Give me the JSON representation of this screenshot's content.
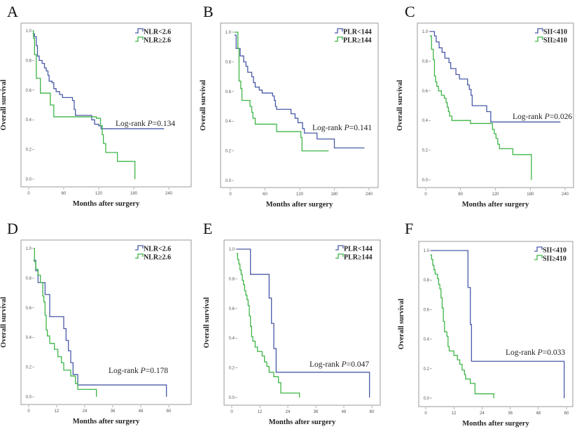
{
  "chart_data": [
    {
      "panel": "A",
      "type": "line",
      "step": true,
      "xlabel": "Months after surgery",
      "ylabel": "Overall survival",
      "xlim": [
        0,
        240
      ],
      "ylim": [
        0,
        1
      ],
      "xticks": [
        "0",
        "60",
        "120",
        "180",
        "240"
      ],
      "yticks": [
        "0.0",
        "0.2",
        "0.4",
        "0.6",
        "0.8",
        "1.0"
      ],
      "logrank": {
        "label": "Log-rank",
        "p_symbol": "P",
        "p_value": "=0.134"
      },
      "series": [
        {
          "name": "NLR<2.6",
          "color": "#4a5aa8",
          "points": [
            [
              7,
              0.98
            ],
            [
              10,
              0.96
            ],
            [
              13,
              0.9
            ],
            [
              15,
              0.83
            ],
            [
              18,
              0.8
            ],
            [
              23,
              0.78
            ],
            [
              27,
              0.75
            ],
            [
              30,
              0.73
            ],
            [
              33,
              0.7
            ],
            [
              35,
              0.66
            ],
            [
              40,
              0.65
            ],
            [
              43,
              0.61
            ],
            [
              47,
              0.59
            ],
            [
              53,
              0.57
            ],
            [
              58,
              0.55
            ],
            [
              75,
              0.53
            ],
            [
              78,
              0.47
            ],
            [
              80,
              0.43
            ],
            [
              108,
              0.4
            ],
            [
              113,
              0.37
            ],
            [
              120,
              0.36
            ],
            [
              124,
              0.34
            ],
            [
              232,
              0.34
            ]
          ]
        },
        {
          "name": "NLR≥2.6",
          "color": "#3fb548",
          "points": [
            [
              7,
              1.0
            ],
            [
              8,
              0.95
            ],
            [
              10,
              0.84
            ],
            [
              13,
              0.68
            ],
            [
              20,
              0.58
            ],
            [
              37,
              0.5
            ],
            [
              43,
              0.42
            ],
            [
              116,
              0.41
            ],
            [
              123,
              0.36
            ],
            [
              126,
              0.3
            ],
            [
              128,
              0.24
            ],
            [
              132,
              0.18
            ],
            [
              152,
              0.12
            ],
            [
              182,
              0.12
            ],
            [
              182,
              0
            ]
          ]
        }
      ]
    },
    {
      "panel": "B",
      "type": "line",
      "step": true,
      "xlabel": "Months after surgery",
      "ylabel": "Overall survival",
      "xlim": [
        0,
        240
      ],
      "ylim": [
        0,
        1
      ],
      "xticks": [
        "0",
        "60",
        "120",
        "180",
        "240"
      ],
      "yticks": [
        "0.0",
        "0.2",
        "0.4",
        "0.6",
        "0.8",
        "1.0"
      ],
      "logrank": {
        "label": "Log-rank",
        "p_symbol": "P",
        "p_value": "=0.141"
      },
      "series": [
        {
          "name": "PLR<144",
          "color": "#4a5aa8",
          "points": [
            [
              7,
              0.98
            ],
            [
              10,
              0.89
            ],
            [
              17,
              0.84
            ],
            [
              23,
              0.8
            ],
            [
              27,
              0.77
            ],
            [
              30,
              0.73
            ],
            [
              37,
              0.7
            ],
            [
              40,
              0.66
            ],
            [
              43,
              0.63
            ],
            [
              50,
              0.61
            ],
            [
              55,
              0.59
            ],
            [
              73,
              0.57
            ],
            [
              76,
              0.54
            ],
            [
              78,
              0.5
            ],
            [
              80,
              0.48
            ],
            [
              105,
              0.45
            ],
            [
              112,
              0.42
            ],
            [
              117,
              0.39
            ],
            [
              125,
              0.35
            ],
            [
              128,
              0.32
            ],
            [
              150,
              0.28
            ],
            [
              180,
              0.22
            ],
            [
              232,
              0.22
            ]
          ]
        },
        {
          "name": "PLR≥144",
          "color": "#3fb548",
          "points": [
            [
              7,
              1.0
            ],
            [
              13,
              0.89
            ],
            [
              15,
              0.67
            ],
            [
              18,
              0.62
            ],
            [
              20,
              0.54
            ],
            [
              34,
              0.5
            ],
            [
              37,
              0.46
            ],
            [
              39,
              0.42
            ],
            [
              43,
              0.38
            ],
            [
              80,
              0.33
            ],
            [
              122,
              0.29
            ],
            [
              124,
              0.2
            ],
            [
              170,
              0.2
            ]
          ]
        }
      ]
    },
    {
      "panel": "C",
      "type": "line",
      "step": true,
      "xlabel": "Months after surgery",
      "ylabel": "Overall survival",
      "xlim": [
        0,
        240
      ],
      "ylim": [
        0,
        1
      ],
      "xticks": [
        "0",
        "60",
        "120",
        "180",
        "240"
      ],
      "yticks": [
        "0.0",
        "0.2",
        "0.4",
        "0.6",
        "0.8",
        "1.0"
      ],
      "logrank": {
        "label": "Log-rank",
        "p_symbol": "P",
        "p_value": "=0.026"
      },
      "series": [
        {
          "name": "SII<410",
          "color": "#4a5aa8",
          "points": [
            [
              7,
              1.0
            ],
            [
              15,
              0.97
            ],
            [
              18,
              0.93
            ],
            [
              23,
              0.89
            ],
            [
              28,
              0.86
            ],
            [
              33,
              0.82
            ],
            [
              40,
              0.79
            ],
            [
              43,
              0.75
            ],
            [
              52,
              0.71
            ],
            [
              58,
              0.68
            ],
            [
              72,
              0.64
            ],
            [
              75,
              0.61
            ],
            [
              78,
              0.57
            ],
            [
              80,
              0.5
            ],
            [
              105,
              0.46
            ],
            [
              112,
              0.39
            ],
            [
              232,
              0.39
            ]
          ]
        },
        {
          "name": "SII≥410",
          "color": "#3fb548",
          "points": [
            [
              7,
              0.97
            ],
            [
              10,
              0.88
            ],
            [
              13,
              0.81
            ],
            [
              15,
              0.7
            ],
            [
              17,
              0.66
            ],
            [
              19,
              0.63
            ],
            [
              22,
              0.6
            ],
            [
              27,
              0.57
            ],
            [
              32,
              0.55
            ],
            [
              35,
              0.52
            ],
            [
              37,
              0.49
            ],
            [
              39,
              0.46
            ],
            [
              41,
              0.43
            ],
            [
              45,
              0.4
            ],
            [
              77,
              0.38
            ],
            [
              115,
              0.34
            ],
            [
              118,
              0.31
            ],
            [
              121,
              0.28
            ],
            [
              124,
              0.24
            ],
            [
              127,
              0.21
            ],
            [
              150,
              0.17
            ],
            [
              182,
              0.17
            ],
            [
              182,
              0
            ]
          ]
        }
      ]
    },
    {
      "panel": "D",
      "type": "line",
      "step": true,
      "xlabel": "Months after surgery",
      "ylabel": "Overall survival",
      "xlim": [
        0,
        60
      ],
      "ylim": [
        0,
        1
      ],
      "xticks": [
        "0",
        "12",
        "24",
        "36",
        "48",
        "60"
      ],
      "yticks": [
        "0.0",
        "0.2",
        "0.4",
        "0.6",
        "0.8",
        "1.0"
      ],
      "logrank": {
        "label": "Log-rank",
        "p_symbol": "P",
        "p_value": "=0.178"
      },
      "series": [
        {
          "name": "NLR<2.6",
          "color": "#4a5aa8",
          "points": [
            [
              2,
              0.92
            ],
            [
              3,
              0.85
            ],
            [
              4,
              0.77
            ],
            [
              7,
              0.69
            ],
            [
              9,
              0.54
            ],
            [
              15,
              0.46
            ],
            [
              16,
              0.38
            ],
            [
              17,
              0.31
            ],
            [
              18,
              0.23
            ],
            [
              19,
              0.15
            ],
            [
              21,
              0.08
            ],
            [
              59,
              0.08
            ],
            [
              59,
              0
            ]
          ]
        },
        {
          "name": "NLR≥2.6",
          "color": "#3fb548",
          "points": [
            [
              2,
              1.0
            ],
            [
              2.5,
              0.91
            ],
            [
              3,
              0.86
            ],
            [
              4,
              0.82
            ],
            [
              5,
              0.77
            ],
            [
              6,
              0.68
            ],
            [
              6.5,
              0.64
            ],
            [
              7,
              0.55
            ],
            [
              7.5,
              0.45
            ],
            [
              8,
              0.41
            ],
            [
              9,
              0.36
            ],
            [
              11,
              0.32
            ],
            [
              12.5,
              0.27
            ],
            [
              14,
              0.23
            ],
            [
              15,
              0.18
            ],
            [
              18,
              0.14
            ],
            [
              20,
              0.09
            ],
            [
              21,
              0.05
            ],
            [
              29,
              0.05
            ],
            [
              29,
              0
            ]
          ]
        }
      ]
    },
    {
      "panel": "E",
      "type": "line",
      "step": true,
      "xlabel": "Months after surgery",
      "ylabel": "Overall survival",
      "xlim": [
        0,
        60
      ],
      "ylim": [
        0,
        1
      ],
      "xticks": [
        "0",
        "12",
        "24",
        "36",
        "48",
        "60"
      ],
      "yticks": [
        "0.0",
        "0.2",
        "0.4",
        "0.6",
        "0.8",
        "1.0"
      ],
      "logrank": {
        "label": "Log-rank",
        "p_symbol": "P",
        "p_value": "=0.047"
      },
      "series": [
        {
          "name": "PLR<144",
          "color": "#4a5aa8",
          "points": [
            [
              2,
              1.0
            ],
            [
              8,
              0.83
            ],
            [
              16,
              0.67
            ],
            [
              17,
              0.5
            ],
            [
              18,
              0.33
            ],
            [
              19,
              0.17
            ],
            [
              59,
              0.17
            ],
            [
              59,
              0
            ]
          ]
        },
        {
          "name": "PLR≥144",
          "color": "#3fb548",
          "points": [
            [
              2,
              0.97
            ],
            [
              2.5,
              0.93
            ],
            [
              3,
              0.9
            ],
            [
              3.5,
              0.86
            ],
            [
              4,
              0.83
            ],
            [
              4.5,
              0.79
            ],
            [
              5,
              0.76
            ],
            [
              5.5,
              0.72
            ],
            [
              6,
              0.69
            ],
            [
              6.5,
              0.66
            ],
            [
              7,
              0.62
            ],
            [
              7.5,
              0.55
            ],
            [
              8,
              0.48
            ],
            [
              8.5,
              0.41
            ],
            [
              9,
              0.38
            ],
            [
              10,
              0.34
            ],
            [
              11,
              0.31
            ],
            [
              13,
              0.28
            ],
            [
              14,
              0.24
            ],
            [
              15,
              0.21
            ],
            [
              16,
              0.17
            ],
            [
              18,
              0.14
            ],
            [
              20,
              0.1
            ],
            [
              21,
              0.03
            ],
            [
              29,
              0.03
            ],
            [
              29,
              0
            ]
          ]
        }
      ]
    },
    {
      "panel": "F",
      "type": "line",
      "step": true,
      "xlabel": "Months after surgery",
      "ylabel": "Overall survival",
      "xlim": [
        0,
        60
      ],
      "ylim": [
        0,
        1
      ],
      "xticks": [
        "0",
        "12",
        "24",
        "36",
        "48",
        "60"
      ],
      "yticks": [
        "0.0",
        "0.2",
        "0.4",
        "0.6",
        "0.8",
        "1.0"
      ],
      "logrank": {
        "label": "Log-rank",
        "p_symbol": "P",
        "p_value": "=0.033"
      },
      "series": [
        {
          "name": "SII<410",
          "color": "#4a5aa8",
          "points": [
            [
              2,
              1.0
            ],
            [
              18,
              0.75
            ],
            [
              19,
              0.5
            ],
            [
              19.5,
              0.25
            ],
            [
              59,
              0.25
            ],
            [
              59,
              0
            ]
          ]
        },
        {
          "name": "SII≥410",
          "color": "#3fb548",
          "points": [
            [
              2,
              0.97
            ],
            [
              2.5,
              0.94
            ],
            [
              3,
              0.9
            ],
            [
              3.5,
              0.87
            ],
            [
              4,
              0.84
            ],
            [
              5,
              0.81
            ],
            [
              5.5,
              0.77
            ],
            [
              6,
              0.74
            ],
            [
              6.5,
              0.68
            ],
            [
              7,
              0.61
            ],
            [
              7.5,
              0.52
            ],
            [
              8,
              0.45
            ],
            [
              9,
              0.42
            ],
            [
              9.5,
              0.35
            ],
            [
              10,
              0.32
            ],
            [
              12,
              0.29
            ],
            [
              13.5,
              0.26
            ],
            [
              14.5,
              0.23
            ],
            [
              15.5,
              0.19
            ],
            [
              16.5,
              0.16
            ],
            [
              17,
              0.13
            ],
            [
              19,
              0.1
            ],
            [
              21,
              0.03
            ],
            [
              29,
              0.03
            ],
            [
              29,
              0
            ]
          ]
        }
      ]
    }
  ]
}
